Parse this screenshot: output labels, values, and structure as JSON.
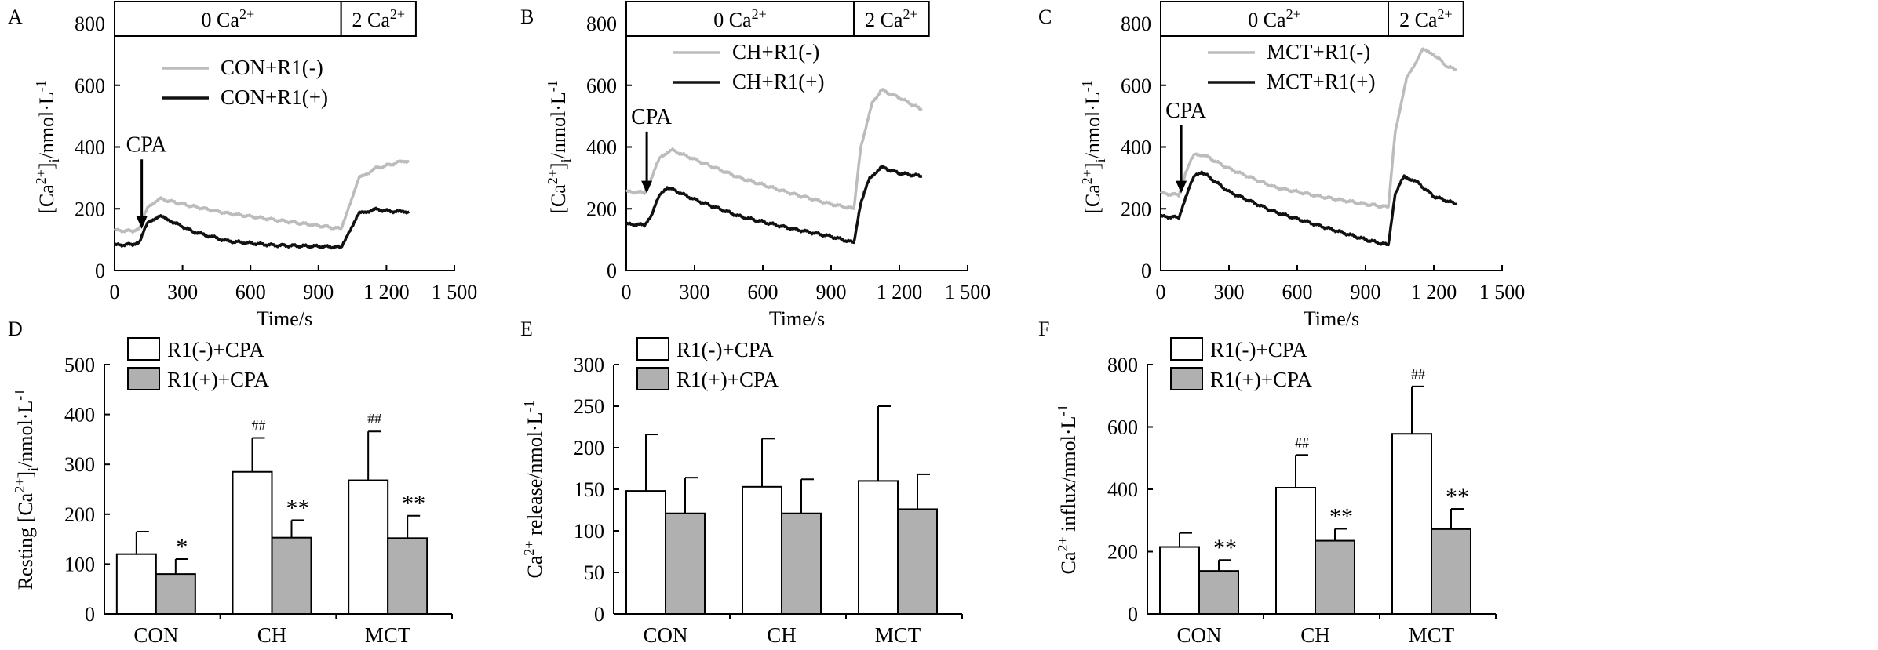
{
  "chart_data": [
    {
      "id": "A",
      "type": "line",
      "panel_label": "A",
      "xlabel": "Time/s",
      "ylabel": "[Ca2+]i/nmol·L-1",
      "xlim": [
        0,
        1500
      ],
      "ylim": [
        0,
        800
      ],
      "xticks": [
        0,
        300,
        600,
        900,
        1200,
        1500
      ],
      "xtick_labels": [
        "0",
        "300",
        "600",
        "900",
        "1 200",
        "1 500"
      ],
      "yticks": [
        0,
        200,
        400,
        600,
        800
      ],
      "ytick_labels": [
        "0",
        "200",
        "400",
        "600",
        "800"
      ],
      "phases": [
        {
          "label": "0 Ca2+",
          "from": 0,
          "to": 1000
        },
        {
          "label": "2 Ca2+",
          "from": 1000,
          "to": 1330
        }
      ],
      "arrow": {
        "label": "CPA",
        "x": 120,
        "y_top": 360,
        "y_bottom": 135
      },
      "series": [
        {
          "name": "CON+R1(-)",
          "color": "#bcbcbc",
          "points": [
            [
              0,
              130
            ],
            [
              80,
              128
            ],
            [
              110,
              140
            ],
            [
              150,
              210
            ],
            [
              200,
              232
            ],
            [
              300,
              215
            ],
            [
              500,
              185
            ],
            [
              700,
              165
            ],
            [
              900,
              145
            ],
            [
              1000,
              135
            ],
            [
              1030,
              200
            ],
            [
              1080,
              300
            ],
            [
              1150,
              330
            ],
            [
              1250,
              350
            ],
            [
              1300,
              355
            ]
          ]
        },
        {
          "name": "CON+R1(+)",
          "color": "#111111",
          "points": [
            [
              0,
              82
            ],
            [
              80,
              85
            ],
            [
              110,
              95
            ],
            [
              150,
              160
            ],
            [
              200,
              175
            ],
            [
              250,
              160
            ],
            [
              350,
              125
            ],
            [
              500,
              95
            ],
            [
              700,
              82
            ],
            [
              900,
              78
            ],
            [
              1000,
              75
            ],
            [
              1030,
              120
            ],
            [
              1080,
              185
            ],
            [
              1150,
              198
            ],
            [
              1250,
              190
            ],
            [
              1300,
              190
            ]
          ]
        }
      ]
    },
    {
      "id": "B",
      "type": "line",
      "panel_label": "B",
      "xlabel": "Time/s",
      "ylabel": "[Ca2+]i/nmol·L-1",
      "xlim": [
        0,
        1500
      ],
      "ylim": [
        0,
        800
      ],
      "xticks": [
        0,
        300,
        600,
        900,
        1200,
        1500
      ],
      "xtick_labels": [
        "0",
        "300",
        "600",
        "900",
        "1 200",
        "1 500"
      ],
      "yticks": [
        0,
        200,
        400,
        600,
        800
      ],
      "ytick_labels": [
        "0",
        "200",
        "400",
        "600",
        "800"
      ],
      "phases": [
        {
          "label": "0 Ca2+",
          "from": 0,
          "to": 1000
        },
        {
          "label": "2 Ca2+",
          "from": 1000,
          "to": 1330
        }
      ],
      "arrow": {
        "label": "CPA",
        "x": 90,
        "y_top": 450,
        "y_bottom": 250
      },
      "series": [
        {
          "name": "CH+R1(-)",
          "color": "#bcbcbc",
          "points": [
            [
              0,
              255
            ],
            [
              80,
              253
            ],
            [
              110,
              300
            ],
            [
              150,
              370
            ],
            [
              200,
              390
            ],
            [
              300,
              360
            ],
            [
              500,
              300
            ],
            [
              700,
              255
            ],
            [
              900,
              215
            ],
            [
              1000,
              200
            ],
            [
              1030,
              400
            ],
            [
              1080,
              540
            ],
            [
              1120,
              585
            ],
            [
              1200,
              560
            ],
            [
              1300,
              520
            ]
          ]
        },
        {
          "name": "CH+R1(+)",
          "color": "#111111",
          "points": [
            [
              0,
              150
            ],
            [
              80,
              148
            ],
            [
              110,
              180
            ],
            [
              150,
              250
            ],
            [
              180,
              270
            ],
            [
              300,
              230
            ],
            [
              500,
              175
            ],
            [
              700,
              140
            ],
            [
              900,
              110
            ],
            [
              1000,
              90
            ],
            [
              1030,
              220
            ],
            [
              1070,
              300
            ],
            [
              1120,
              335
            ],
            [
              1200,
              315
            ],
            [
              1300,
              305
            ]
          ]
        }
      ]
    },
    {
      "id": "C",
      "type": "line",
      "panel_label": "C",
      "xlabel": "Time/s",
      "ylabel": "[Ca2+]i/nmol·L-1",
      "xlim": [
        0,
        1500
      ],
      "ylim": [
        0,
        800
      ],
      "xticks": [
        0,
        300,
        600,
        900,
        1200,
        1500
      ],
      "xtick_labels": [
        "0",
        "300",
        "600",
        "900",
        "1 200",
        "1 500"
      ],
      "yticks": [
        0,
        200,
        400,
        600,
        800
      ],
      "ytick_labels": [
        "0",
        "200",
        "400",
        "600",
        "800"
      ],
      "phases": [
        {
          "label": "0 Ca2+",
          "from": 0,
          "to": 1000
        },
        {
          "label": "2 Ca2+",
          "from": 1000,
          "to": 1330
        }
      ],
      "arrow": {
        "label": "CPA",
        "x": 90,
        "y_top": 470,
        "y_bottom": 250
      },
      "series": [
        {
          "name": "MCT+R1(-)",
          "color": "#bcbcbc",
          "points": [
            [
              0,
              250
            ],
            [
              80,
              245
            ],
            [
              110,
              320
            ],
            [
              150,
              380
            ],
            [
              200,
              370
            ],
            [
              300,
              330
            ],
            [
              500,
              270
            ],
            [
              700,
              240
            ],
            [
              900,
              215
            ],
            [
              1000,
              205
            ],
            [
              1030,
              450
            ],
            [
              1080,
              620
            ],
            [
              1150,
              715
            ],
            [
              1200,
              700
            ],
            [
              1260,
              660
            ],
            [
              1300,
              650
            ]
          ]
        },
        {
          "name": "MCT+R1(+)",
          "color": "#111111",
          "points": [
            [
              0,
              175
            ],
            [
              80,
              172
            ],
            [
              110,
              240
            ],
            [
              150,
              310
            ],
            [
              180,
              320
            ],
            [
              300,
              255
            ],
            [
              500,
              190
            ],
            [
              700,
              145
            ],
            [
              900,
              100
            ],
            [
              1000,
              82
            ],
            [
              1030,
              250
            ],
            [
              1070,
              305
            ],
            [
              1120,
              290
            ],
            [
              1200,
              240
            ],
            [
              1300,
              215
            ]
          ]
        }
      ]
    },
    {
      "id": "D",
      "type": "bar",
      "panel_label": "D",
      "ylabel": "Resting [Ca2+]i/nmol·L-1",
      "ylim": [
        0,
        500
      ],
      "yticks": [
        0,
        100,
        200,
        300,
        400,
        500
      ],
      "ytick_labels": [
        "0",
        "100",
        "200",
        "300",
        "400",
        "500"
      ],
      "categories": [
        "CON",
        "CH",
        "MCT"
      ],
      "series": [
        {
          "name": "R1(-)+CPA",
          "color": "#ffffff",
          "values": [
            120,
            285,
            268
          ],
          "errors": [
            45,
            68,
            98
          ],
          "marks": [
            "",
            "##",
            "##"
          ]
        },
        {
          "name": "R1(+)+CPA",
          "color": "#b0b0b0",
          "values": [
            80,
            153,
            152
          ],
          "errors": [
            30,
            35,
            45
          ],
          "marks": [
            "*",
            "**",
            "**"
          ]
        }
      ]
    },
    {
      "id": "E",
      "type": "bar",
      "panel_label": "E",
      "ylabel": "Ca2+ release/nmol·L-1",
      "ylim": [
        0,
        300
      ],
      "yticks": [
        0,
        50,
        100,
        150,
        200,
        250,
        300
      ],
      "ytick_labels": [
        "0",
        "50",
        "100",
        "150",
        "200",
        "250",
        "300"
      ],
      "categories": [
        "CON",
        "CH",
        "MCT"
      ],
      "series": [
        {
          "name": "R1(-)+CPA",
          "color": "#ffffff",
          "values": [
            148,
            153,
            160
          ],
          "errors": [
            68,
            58,
            90
          ],
          "marks": [
            "",
            "",
            ""
          ]
        },
        {
          "name": "R1(+)+CPA",
          "color": "#b0b0b0",
          "values": [
            121,
            121,
            126
          ],
          "errors": [
            43,
            41,
            42
          ],
          "marks": [
            "",
            "",
            ""
          ]
        }
      ]
    },
    {
      "id": "F",
      "type": "bar",
      "panel_label": "F",
      "ylabel": "Ca2+ influx/nmol·L-1",
      "ylim": [
        0,
        800
      ],
      "yticks": [
        0,
        200,
        400,
        600,
        800
      ],
      "ytick_labels": [
        "0",
        "200",
        "400",
        "600",
        "800"
      ],
      "categories": [
        "CON",
        "CH",
        "MCT"
      ],
      "series": [
        {
          "name": "R1(-)+CPA",
          "color": "#ffffff",
          "values": [
            215,
            405,
            578
          ],
          "errors": [
            45,
            105,
            152
          ],
          "marks": [
            "",
            "##",
            "##"
          ]
        },
        {
          "name": "R1(+)+CPA",
          "color": "#b0b0b0",
          "values": [
            138,
            235,
            272
          ],
          "errors": [
            35,
            38,
            65
          ],
          "marks": [
            "**",
            "**",
            "**"
          ]
        }
      ]
    }
  ]
}
